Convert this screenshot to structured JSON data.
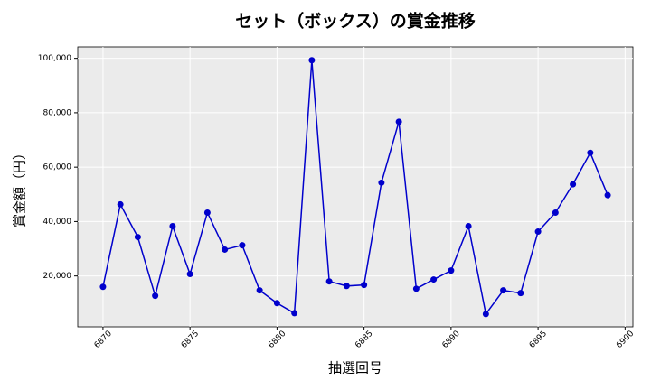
{
  "chart_data": {
    "type": "line",
    "title": "セット（ボックス）の賞金推移",
    "x_label": "抽選回号",
    "y_label": "賞金額（円）",
    "x": [
      6870,
      6871,
      6872,
      6873,
      6874,
      6875,
      6876,
      6877,
      6878,
      6879,
      6880,
      6881,
      6882,
      6883,
      6884,
      6885,
      6886,
      6887,
      6888,
      6889,
      6890,
      6891,
      6892,
      6893,
      6894,
      6895,
      6896,
      6897,
      6898,
      6899
    ],
    "series": [
      {
        "name": "賞金額",
        "color": "#0000cc",
        "values": [
          16000,
          46300,
          34300,
          12700,
          38300,
          20700,
          43300,
          29700,
          31300,
          14700,
          10000,
          6300,
          99300,
          18000,
          16300,
          16700,
          54300,
          76700,
          15300,
          18700,
          22000,
          38300,
          6000,
          14700,
          13700,
          36300,
          43300,
          53700,
          65300,
          49700
        ]
      }
    ],
    "xlim": [
      6868.55,
      6900.45
    ],
    "xticks": [
      6870,
      6875,
      6880,
      6885,
      6890,
      6895,
      6900
    ],
    "ylim": [
      1300,
      104200
    ],
    "yticks": [
      {
        "value": 20000,
        "label": "20,000"
      },
      {
        "value": 40000,
        "label": "40,000"
      },
      {
        "value": 60000,
        "label": "60,000"
      },
      {
        "value": 80000,
        "label": "80,000"
      },
      {
        "value": 100000,
        "label": "100,000"
      }
    ],
    "grid": true
  }
}
